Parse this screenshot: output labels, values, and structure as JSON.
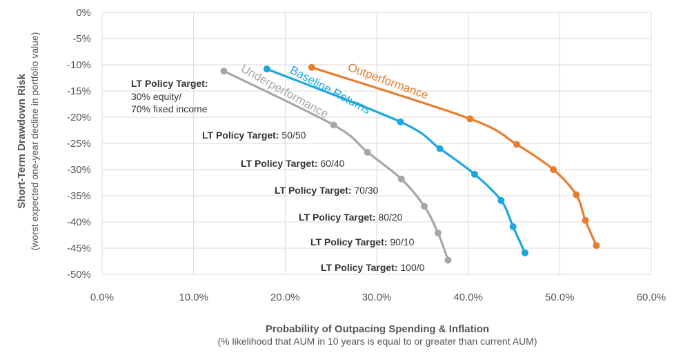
{
  "chart_data": {
    "type": "line",
    "title": "",
    "xlabel": "Probability of Outpacing Spending & Inflation",
    "xlabel_sub": "(% likelihood that AUM in 10 years is equal to or greater than current AUM)",
    "ylabel": "Short-Term Drawdown Risk",
    "ylabel_sub": "(worst expected one-year decline in portfolio value)",
    "xlim": [
      0,
      60
    ],
    "ylim": [
      -50,
      0
    ],
    "x_ticks": [
      0,
      10,
      20,
      30,
      40,
      50,
      60
    ],
    "x_tick_labels": [
      "0.0%",
      "10.0%",
      "20.0%",
      "30.0%",
      "40.0%",
      "50.0%",
      "60.0%"
    ],
    "y_ticks": [
      0,
      -5,
      -10,
      -15,
      -20,
      -25,
      -30,
      -35,
      -40,
      -45,
      -50
    ],
    "y_tick_labels": [
      "0%",
      "-5%",
      "-10%",
      "-15%",
      "-20%",
      "-25%",
      "-30%",
      "-35%",
      "-40%",
      "-45%",
      "-50%"
    ],
    "grid": true,
    "series": [
      {
        "name": "Underperformance",
        "color": "#a6a6a6",
        "points": [
          [
            13.3,
            -11.2
          ],
          [
            25.3,
            -21.5
          ],
          [
            29.0,
            -26.7
          ],
          [
            32.7,
            -31.8
          ],
          [
            35.2,
            -37.0
          ],
          [
            36.7,
            -42.1
          ],
          [
            37.8,
            -47.3
          ]
        ]
      },
      {
        "name": "Baseline Returns",
        "color": "#1ba7df",
        "points": [
          [
            18.0,
            -10.8
          ],
          [
            32.6,
            -20.9
          ],
          [
            36.9,
            -26.0
          ],
          [
            40.7,
            -30.9
          ],
          [
            43.6,
            -35.9
          ],
          [
            44.9,
            -40.9
          ],
          [
            46.2,
            -45.9
          ]
        ]
      },
      {
        "name": "Outperformance",
        "color": "#e87d30",
        "points": [
          [
            22.9,
            -10.5
          ],
          [
            40.2,
            -20.3
          ],
          [
            45.3,
            -25.2
          ],
          [
            49.3,
            -30.0
          ],
          [
            51.8,
            -34.8
          ],
          [
            52.8,
            -39.7
          ],
          [
            54.0,
            -44.5
          ]
        ]
      }
    ],
    "annotations": [
      {
        "bold": "LT Policy Target:",
        "lines": [
          "30% equity/",
          "70% fixed income"
        ]
      },
      {
        "bold": "LT Policy Target:",
        "rest": "50/50"
      },
      {
        "bold": "LT Policy Target:",
        "rest": "60/40"
      },
      {
        "bold": "LT Policy Target:",
        "rest": "70/30"
      },
      {
        "bold": "LT Policy Target:",
        "rest": "80/20"
      },
      {
        "bold": "LT Policy Target:",
        "rest": "90/10"
      },
      {
        "bold": "LT Policy Target:",
        "rest": "100/0"
      }
    ]
  }
}
